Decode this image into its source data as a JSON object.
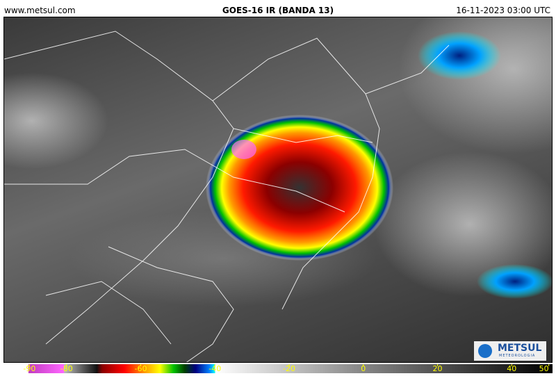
{
  "header": {
    "site": "www.metsul.com",
    "title": "GOES-16 IR (BANDA 13)",
    "timestamp": "16-11-2023 03:00 UTC"
  },
  "logo": {
    "name": "METSUL",
    "tagline": "METEOROLOGIA"
  },
  "colorbar": {
    "xlim": [
      -97,
      51
    ],
    "ticks": [
      -90,
      -80,
      -60,
      -40,
      -20,
      0,
      20,
      40,
      50
    ]
  }
}
